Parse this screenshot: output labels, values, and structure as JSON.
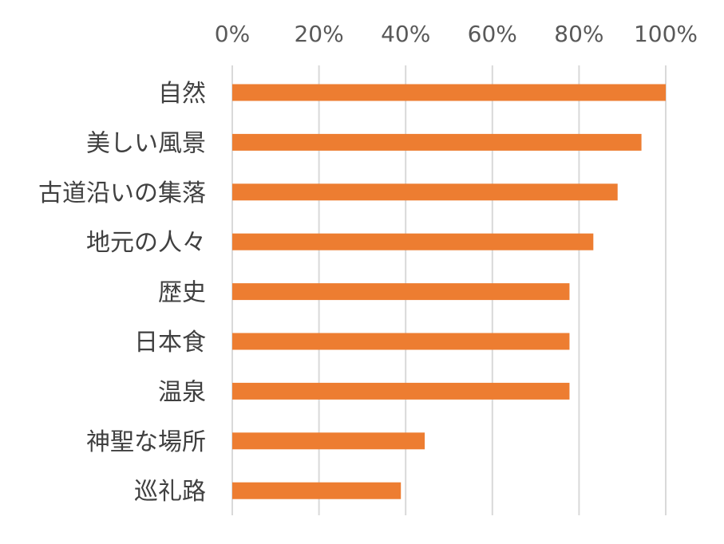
{
  "chart_data": {
    "type": "bar",
    "orientation": "horizontal",
    "title": "",
    "xlabel": "",
    "ylabel": "",
    "x_axis_position": "top",
    "xlim": [
      0,
      100
    ],
    "x_ticks": [
      "0%",
      "20%",
      "40%",
      "60%",
      "80%",
      "100%"
    ],
    "grid": true,
    "legend": "none",
    "bar_color": "#ED7D31",
    "grid_color": "#D9D9D9",
    "categories": [
      "自然",
      "美しい風景",
      "古道沿いの集落",
      "地元の人々",
      "歴史",
      "日本食",
      "温泉",
      "神聖な場所",
      "巡礼路"
    ],
    "values": [
      100,
      94.4,
      88.9,
      83.3,
      77.8,
      77.8,
      77.8,
      44.4,
      38.9
    ]
  }
}
